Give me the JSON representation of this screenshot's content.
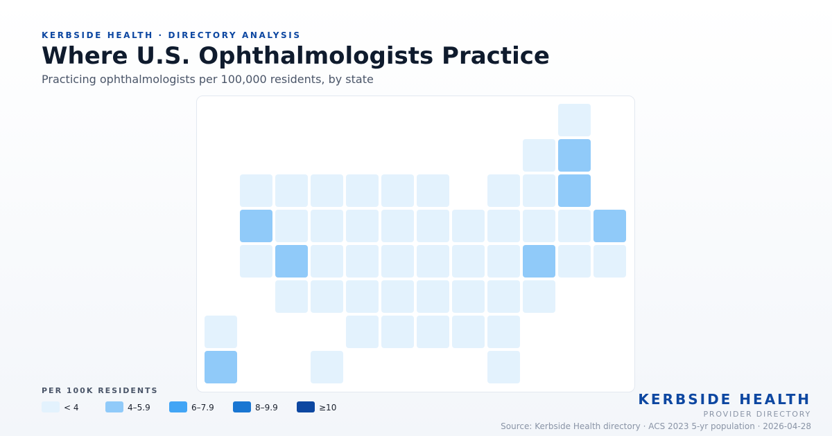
{
  "header": {
    "kicker": "KERBSIDE HEALTH · DIRECTORY ANALYSIS",
    "title": "Where U.S. Ophthalmologists Practice",
    "subtitle": "Practicing ophthalmologists per 100,000 residents, by state"
  },
  "map": {
    "type": "tile-grid",
    "grid": [
      [
        null,
        null,
        null,
        null,
        null,
        null,
        null,
        null,
        null,
        null,
        0,
        null
      ],
      [
        null,
        null,
        null,
        null,
        null,
        null,
        null,
        null,
        null,
        0,
        1,
        null
      ],
      [
        null,
        0,
        0,
        0,
        0,
        0,
        0,
        null,
        0,
        0,
        1,
        null
      ],
      [
        null,
        1,
        0,
        0,
        0,
        0,
        0,
        0,
        0,
        0,
        0,
        1
      ],
      [
        null,
        0,
        1,
        0,
        0,
        0,
        0,
        0,
        0,
        1,
        0,
        0
      ],
      [
        null,
        null,
        0,
        0,
        0,
        0,
        0,
        0,
        0,
        0,
        null,
        null
      ],
      [
        0,
        null,
        null,
        null,
        0,
        0,
        0,
        0,
        0,
        null,
        null,
        null
      ],
      [
        1,
        null,
        null,
        0,
        null,
        null,
        null,
        null,
        0,
        null,
        null,
        null
      ]
    ]
  },
  "legend": {
    "title": "PER 100K RESIDENTS",
    "items": [
      {
        "label": "< 4",
        "color": "#e3f2fd"
      },
      {
        "label": "4–5.9",
        "color": "#90caf9"
      },
      {
        "label": "6–7.9",
        "color": "#42a5f5"
      },
      {
        "label": "8–9.9",
        "color": "#1976d2"
      },
      {
        "label": "≥10",
        "color": "#0d47a1"
      }
    ]
  },
  "footer": {
    "brand": "KERBSIDE HEALTH",
    "tagline": "PROVIDER DIRECTORY",
    "source": "Source: Kerbside Health directory · ACS 2023 5-yr population · 2026-04-28"
  }
}
